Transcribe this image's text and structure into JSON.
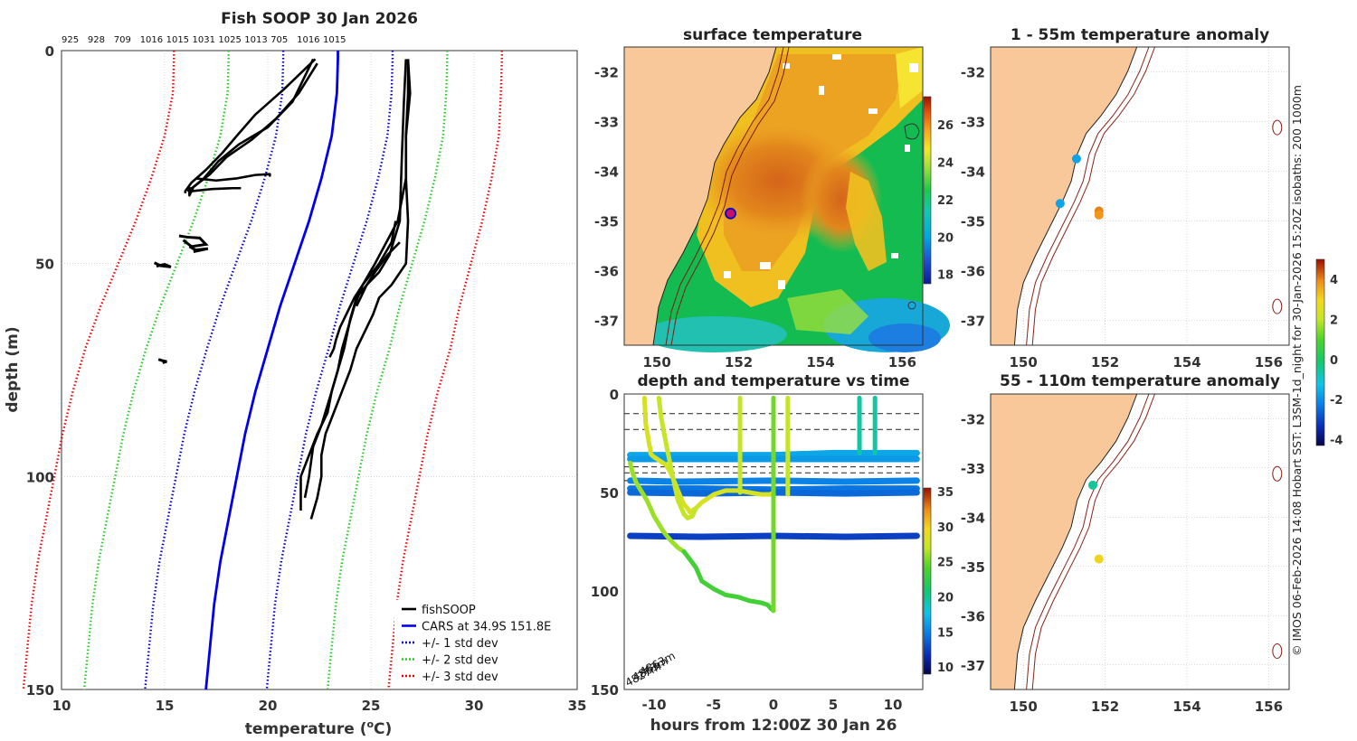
{
  "chart_data": [
    {
      "type": "line",
      "title": "Fish SOOP 30 Jan 2026",
      "top_labels": [
        "925",
        "928",
        "709",
        "1016",
        "1015",
        "1031",
        "1025",
        "1013",
        "705",
        "1016",
        "1015"
      ],
      "xlabel": "temperature (°C)",
      "xlabel_plain": "temperature (",
      "xlabel_sup": "o",
      "xlabel_tail": "C)",
      "ylabel": "depth (m)",
      "xlim": [
        10,
        35
      ],
      "ylim": [
        150,
        0
      ],
      "x_ticks": [
        10,
        15,
        20,
        25,
        30,
        35
      ],
      "y_ticks": [
        0,
        50,
        100,
        150
      ],
      "grid": true,
      "legend_position": "bottom-right",
      "legend": [
        {
          "label": "fishSOOP",
          "color": "#000000",
          "style": "solid"
        },
        {
          "label": "CARS at 34.9S 151.8E",
          "color": "#0000ee",
          "style": "solid"
        },
        {
          "label": "+/- 1 std dev",
          "color": "#0000cc",
          "style": "dotted"
        },
        {
          "label": "+/- 2 std dev",
          "color": "#22cc22",
          "style": "dotted"
        },
        {
          "label": "+/- 3 std dev",
          "color": "#ee0000",
          "style": "dotted"
        }
      ],
      "cars_depth": [
        0,
        2,
        10,
        20,
        30,
        40,
        50,
        60,
        70,
        80,
        90,
        100,
        110,
        120,
        130,
        140,
        150
      ],
      "cars_mean": [
        23.4,
        23.4,
        23.35,
        23.1,
        22.6,
        22.0,
        21.3,
        20.6,
        20.0,
        19.4,
        18.9,
        18.5,
        18.1,
        17.7,
        17.4,
        17.2,
        17.0
      ],
      "cars_std": [
        2.65,
        2.65,
        2.65,
        2.7,
        2.75,
        2.8,
        2.85,
        2.9,
        2.95,
        2.95,
        2.95,
        2.95,
        2.95,
        2.95,
        2.95,
        2.95,
        2.95
      ],
      "std_colors": [
        "#0000cc",
        "#22cc22",
        "#ee0000"
      ],
      "series": [
        {
          "name": "fishSOOP shallow cast 1",
          "x": [
            22.3,
            20.8,
            19.4,
            18.5,
            17.8,
            17.0,
            16.3,
            16.0,
            16.0
          ],
          "y": [
            2,
            9,
            15,
            20,
            24,
            28,
            31,
            33,
            33.5
          ]
        },
        {
          "name": "fishSOOP shallow cast 2",
          "x": [
            22.4,
            21.5,
            20.4,
            19.2,
            18.0,
            17.2,
            16.4,
            16.1,
            16.1
          ],
          "y": [
            3,
            10,
            16,
            21,
            25,
            29,
            32,
            33,
            33
          ]
        },
        {
          "name": "fishSOOP shallow cast 3",
          "x": [
            22.2,
            21.2,
            20.0,
            18.6,
            17.6,
            16.9,
            16.4,
            16.2,
            16.2
          ],
          "y": [
            2,
            12,
            18,
            22,
            26,
            30,
            32,
            34,
            32
          ]
        },
        {
          "name": "fishSOOP shallow cast 4",
          "x": [
            16.5,
            17.5,
            18.5,
            19.4,
            20.1,
            20.1
          ],
          "y": [
            30,
            30.5,
            30,
            29.2,
            29,
            29.6
          ]
        },
        {
          "name": "fishSOOP shallow cast 5",
          "x": [
            16.3,
            17.3,
            18.3,
            18.7
          ],
          "y": [
            33,
            32.5,
            32.3,
            32.3
          ]
        },
        {
          "name": "fishSOOP deep cast 1",
          "x": [
            26.8,
            26.9,
            26.7,
            26.7,
            26.3,
            25.2,
            24.6,
            24.2,
            23.9,
            23.6,
            23.4,
            23.1,
            22.9,
            22.4,
            22.0,
            21.6,
            21.6,
            21.6
          ],
          "y": [
            2,
            10,
            20,
            30,
            40,
            50,
            55,
            60,
            65,
            70,
            75,
            80,
            85,
            90,
            95,
            100,
            105,
            108
          ]
        },
        {
          "name": "fishSOOP deep cast 2",
          "x": [
            26.8,
            26.8,
            26.7,
            26.7,
            26.8,
            26.7,
            26.0,
            25.4,
            25.1,
            24.7,
            24.3,
            24.0,
            23.6,
            23.2,
            22.8,
            22.6,
            22.6,
            22.4,
            22.1
          ],
          "y": [
            2,
            10,
            20,
            30,
            40,
            50,
            55,
            58,
            62,
            66,
            70,
            75,
            80,
            85,
            90,
            95,
            100,
            105,
            110
          ]
        },
        {
          "name": "fishSOOP deep cast 3",
          "x": [
            26.7,
            26.6,
            26.5,
            26.4,
            25.9,
            25.4,
            24.8,
            24.3,
            24.0,
            23.7,
            23.1,
            22.6,
            22.2,
            22.0,
            21.8
          ],
          "y": [
            2,
            12,
            25,
            40,
            48,
            52,
            55,
            58,
            63,
            70,
            80,
            88,
            93,
            100,
            105
          ]
        },
        {
          "name": "fishSOOP deep cast 4",
          "x": [
            26.2,
            26.0,
            25.4,
            24.6,
            24.2,
            23.8,
            23.5,
            23.3,
            23.2,
            23.0
          ],
          "y": [
            40,
            45,
            50,
            55,
            58,
            62,
            65,
            68,
            70,
            72
          ]
        },
        {
          "name": "fishSOOP deep cast 5",
          "x": [
            26.4,
            25.8,
            25.2,
            24.8,
            24.5,
            24.3
          ],
          "y": [
            45,
            48,
            52,
            55,
            58,
            60
          ]
        }
      ],
      "blobs": [
        {
          "x": [
            15.7,
            16.1,
            16.7,
            17.0,
            16.3,
            15.9
          ],
          "y": [
            43.5,
            43.8,
            44.0,
            45.5,
            46.0,
            44.5
          ]
        },
        {
          "x": [
            16.2,
            16.5,
            17.1,
            16.4
          ],
          "y": [
            46.0,
            46.8,
            46.5,
            47.2
          ]
        },
        {
          "x": [
            14.5,
            14.8,
            15.3,
            15.0,
            14.6
          ],
          "y": [
            49.8,
            50.5,
            50.8,
            50.2,
            50.6
          ]
        },
        {
          "x": [
            14.7,
            14.9,
            15.1,
            14.9
          ],
          "y": [
            72.5,
            72.8,
            73.0,
            73.3
          ]
        }
      ]
    },
    {
      "type": "heatmap",
      "title": "surface temperature",
      "xlim": [
        149.2,
        156.5
      ],
      "ylim": [
        -37.5,
        -31.5
      ],
      "x_ticks": [
        150,
        152,
        154,
        156
      ],
      "y_ticks": [
        -32,
        -33,
        -34,
        -35,
        -36,
        -37
      ],
      "colorbar_ticks": [
        26,
        24,
        22,
        20,
        18
      ],
      "colorbar_range": [
        17.5,
        27.5
      ],
      "marker": {
        "lon": 151.8,
        "lat": -34.85
      }
    },
    {
      "type": "scatter",
      "title": "depth and temperature vs time",
      "xlabel": "hours from 12:00Z 30 Jan 26",
      "ylabel": "",
      "xlim": [
        -12.5,
        12.5
      ],
      "ylim": [
        150,
        0
      ],
      "x_ticks": [
        -10,
        -5,
        0,
        5,
        10
      ],
      "y_ticks": [
        0,
        50,
        100,
        150
      ],
      "colorbar_ticks": [
        35,
        30,
        25,
        20,
        15,
        10
      ],
      "colorbar_range": [
        9,
        35.5
      ],
      "dashed_depths": [
        10,
        18,
        37,
        40,
        44
      ],
      "annotations": [
        "4827m",
        "4863m",
        "4863m"
      ],
      "tracks": [
        {
          "hours": [
            -12.0,
            -10.0,
            -6.0,
            0.0,
            5.0,
            12.0
          ],
          "depth": [
            31,
            31,
            31,
            31,
            30,
            30
          ],
          "temp": 16.5
        },
        {
          "hours": [
            -12.0,
            -8.0,
            -2.0,
            4.0,
            12.0
          ],
          "depth": [
            33,
            33,
            33,
            33,
            33
          ],
          "temp": 16.0
        },
        {
          "hours": [
            -12.0,
            -8.0,
            0.0,
            6.0,
            12.0
          ],
          "depth": [
            44,
            44.5,
            44,
            44.5,
            44
          ],
          "temp": 15.0
        },
        {
          "hours": [
            -12.0,
            -6.0,
            0.0,
            6.0,
            12.0
          ],
          "depth": [
            48,
            48,
            48.5,
            48,
            48
          ],
          "temp": 14.5
        },
        {
          "hours": [
            -12.0,
            -6.0,
            0.0,
            6.0,
            12.0
          ],
          "depth": [
            50,
            50.5,
            50,
            50.5,
            50
          ],
          "temp": 14.0
        },
        {
          "hours": [
            -12.0,
            -6.0,
            0.0,
            6.0,
            12.0
          ],
          "depth": [
            72,
            72.5,
            72,
            72.5,
            72
          ],
          "temp": 12.5
        }
      ],
      "profiles": [
        {
          "hours": [
            -10.8,
            -10.7,
            -10.5,
            -10.4,
            -10.3,
            -10.3,
            -10.2,
            -10.0,
            -9.5,
            -9.0,
            -8.6,
            -8.2,
            -7.8,
            -7.5,
            -7.2,
            -7.0,
            -6.5,
            -6.0,
            -5.0,
            -4.0,
            -3.0,
            -2.0,
            -1.0,
            -0.3,
            0.0
          ],
          "depth": [
            2,
            15,
            22,
            26,
            28,
            30,
            31,
            32,
            34,
            36,
            40,
            46,
            52,
            56,
            58,
            60,
            58,
            55,
            51,
            49,
            49,
            50,
            51,
            51,
            50
          ],
          "temp": 28
        },
        {
          "hours": [
            -9.6,
            -9.4,
            -9.0,
            -8.5,
            -8.0,
            -7.5,
            -7.2,
            -6.8,
            -6.5
          ],
          "depth": [
            2,
            12,
            25,
            40,
            54,
            61,
            63,
            62,
            58
          ],
          "temp": 27
        },
        {
          "hours": [
            -12.0,
            -11.8,
            -11.5,
            -11.0,
            -10.6,
            -10.3,
            -10.0,
            -9.6,
            -9.2,
            -8.8,
            -8.5,
            -8.0,
            -7.5
          ],
          "depth": [
            35,
            40,
            45,
            50,
            54,
            58,
            62,
            66,
            70,
            73,
            75,
            78,
            80
          ],
          "temp": 26
        },
        {
          "hours": [
            -7.5,
            -6.5,
            -6.0,
            -5.0,
            -4.0,
            -3.0,
            -2.0,
            -1.0,
            -0.5,
            -0.2,
            0.0
          ],
          "depth": [
            80,
            88,
            95,
            99,
            102,
            103,
            105,
            106,
            107,
            109,
            110
          ],
          "temp": 23.5
        },
        {
          "hours": [
            -2.8,
            -2.8,
            -2.8
          ],
          "depth": [
            2,
            25,
            50
          ],
          "temp": 27
        },
        {
          "hours": [
            0.0,
            0.0,
            0.0,
            0.0
          ],
          "depth": [
            110,
            90,
            60,
            2
          ],
          "temp": 25
        },
        {
          "hours": [
            1.2,
            1.2,
            1.2
          ],
          "depth": [
            2,
            25,
            51
          ],
          "temp": 27
        },
        {
          "hours": [
            7.2,
            7.2,
            7.2
          ],
          "depth": [
            2,
            15,
            30
          ],
          "temp": 19.5
        },
        {
          "hours": [
            8.5,
            8.5,
            8.5
          ],
          "depth": [
            2,
            15,
            30
          ],
          "temp": 19.5
        }
      ]
    },
    {
      "type": "scatter",
      "title": "1 - 55m temperature anomaly",
      "xlim": [
        149.2,
        156.5
      ],
      "ylim": [
        -37.5,
        -31.5
      ],
      "x_ticks": [
        150,
        152,
        154,
        156
      ],
      "y_ticks": [
        -32,
        -33,
        -34,
        -35,
        -36,
        -37
      ],
      "points": [
        {
          "lon": 151.3,
          "lat": -33.75,
          "anomaly": -1.7
        },
        {
          "lon": 150.9,
          "lat": -34.65,
          "anomaly": -1.7
        },
        {
          "lon": 151.85,
          "lat": -34.8,
          "anomaly": 4.0
        },
        {
          "lon": 151.85,
          "lat": -34.88,
          "anomaly": 3.8
        }
      ]
    },
    {
      "type": "scatter",
      "title": "55 - 110m temperature anomaly",
      "xlim": [
        149.2,
        156.5
      ],
      "ylim": [
        -37.5,
        -31.5
      ],
      "x_ticks": [
        150,
        152,
        154,
        156
      ],
      "y_ticks": [
        -32,
        -33,
        -34,
        -35,
        -36,
        -37
      ],
      "points": [
        {
          "lon": 151.7,
          "lat": -33.35,
          "anomaly": -0.5
        },
        {
          "lon": 151.85,
          "lat": -34.85,
          "anomaly": 3.0
        }
      ]
    }
  ],
  "anomaly_colorbar": {
    "ticks": [
      4,
      2,
      0,
      -2,
      -4
    ],
    "range": [
      -4.3,
      5.0
    ]
  },
  "credit": "© IMOS 06-Feb-2026 14:08 Hobart SST: L3SM-1d_night for 30-Jan-2026 15:20Z isobaths: 200  1000m"
}
